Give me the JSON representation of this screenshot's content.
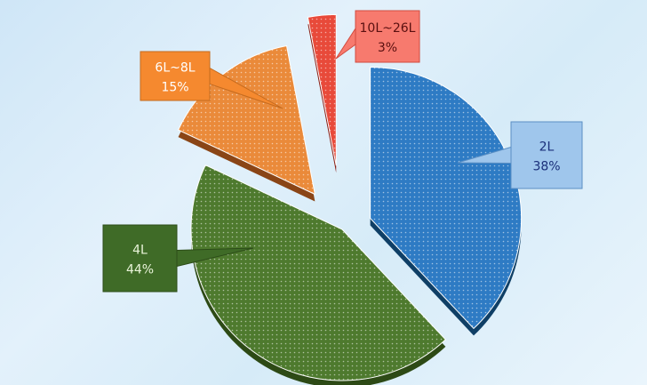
{
  "chart_data": {
    "type": "pie",
    "exploded": true,
    "three_d": true,
    "slices": [
      {
        "label": "2L",
        "percent_text": "38%",
        "value": 38,
        "color": "#2e7bc4",
        "side": "#0f3f66",
        "box_fill": "#9fc6ec",
        "box_stroke": "#5b8fc4",
        "text_color": "#1a2f7a",
        "pattern": "dots-light"
      },
      {
        "label": "4L",
        "percent_text": "44%",
        "value": 44,
        "color": "#4e7a2e",
        "side": "#2d4a16",
        "box_fill": "#3f6b27",
        "box_stroke": "#2c4c18",
        "text_color": "#e8f3d8",
        "pattern": "dots-light"
      },
      {
        "label": "6L~8L",
        "percent_text": "15%",
        "value": 15,
        "color": "#ea8a3a",
        "side": "#8a4516",
        "box_fill": "#f5892f",
        "box_stroke": "#c46a1e",
        "text_color": "#ffffff",
        "pattern": "dots-light"
      },
      {
        "label": "10L~26L",
        "percent_text": "3%",
        "value": 3,
        "color": "#e84a3a",
        "side": "#8a1e14",
        "box_fill": "#f77a6e",
        "box_stroke": "#d14a3e",
        "text_color": "#5a1010",
        "pattern": "dots-light"
      }
    ]
  }
}
